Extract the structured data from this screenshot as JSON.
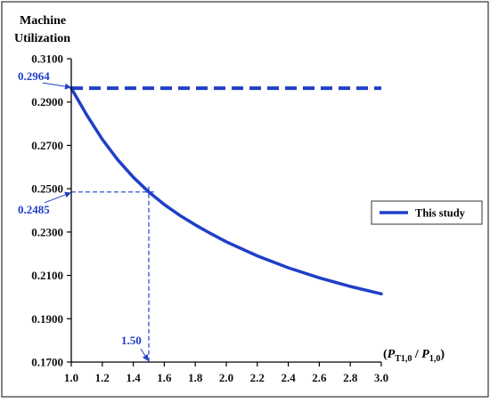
{
  "chart_data": {
    "type": "line",
    "ylabel_lines": [
      "Machine",
      "Utilization"
    ],
    "xlabel": {
      "open": "(",
      "main1": "P",
      "sub1": "T1,0",
      "slash": " / ",
      "main2": "P",
      "sub2": "1,0",
      "close": ")"
    },
    "xlim": [
      1.0,
      3.0
    ],
    "ylim": [
      0.17,
      0.31
    ],
    "x_ticks": [
      "1.0",
      "1.2",
      "1.4",
      "1.6",
      "1.8",
      "2.0",
      "2.2",
      "2.4",
      "2.6",
      "2.8",
      "3.0"
    ],
    "y_ticks": [
      "0.1700",
      "0.1900",
      "0.2100",
      "0.2300",
      "0.2500",
      "0.2700",
      "0.2900",
      "0.3100"
    ],
    "series": [
      {
        "name": "This study",
        "x": [
          1.0,
          1.1,
          1.2,
          1.3,
          1.4,
          1.5,
          1.6,
          1.7,
          1.8,
          1.9,
          2.0,
          2.2,
          2.4,
          2.6,
          2.8,
          3.0
        ],
        "y": [
          0.2964,
          0.284,
          0.2728,
          0.2633,
          0.2553,
          0.2485,
          0.2427,
          0.2377,
          0.2333,
          0.2293,
          0.2255,
          0.219,
          0.2135,
          0.2089,
          0.2049,
          0.2015
        ]
      }
    ],
    "reference_line": {
      "y": 0.2964
    },
    "annotations": [
      {
        "text": "0.2964",
        "y": 0.2964
      },
      {
        "text": "0.2485",
        "y": 0.2485
      },
      {
        "text": "1.50",
        "x": 1.5
      }
    ],
    "legend_position": "right",
    "grid": false,
    "colors": {
      "series": "#1f3fc8",
      "annotation": "#1f3fc8",
      "axis": "#000000"
    }
  }
}
